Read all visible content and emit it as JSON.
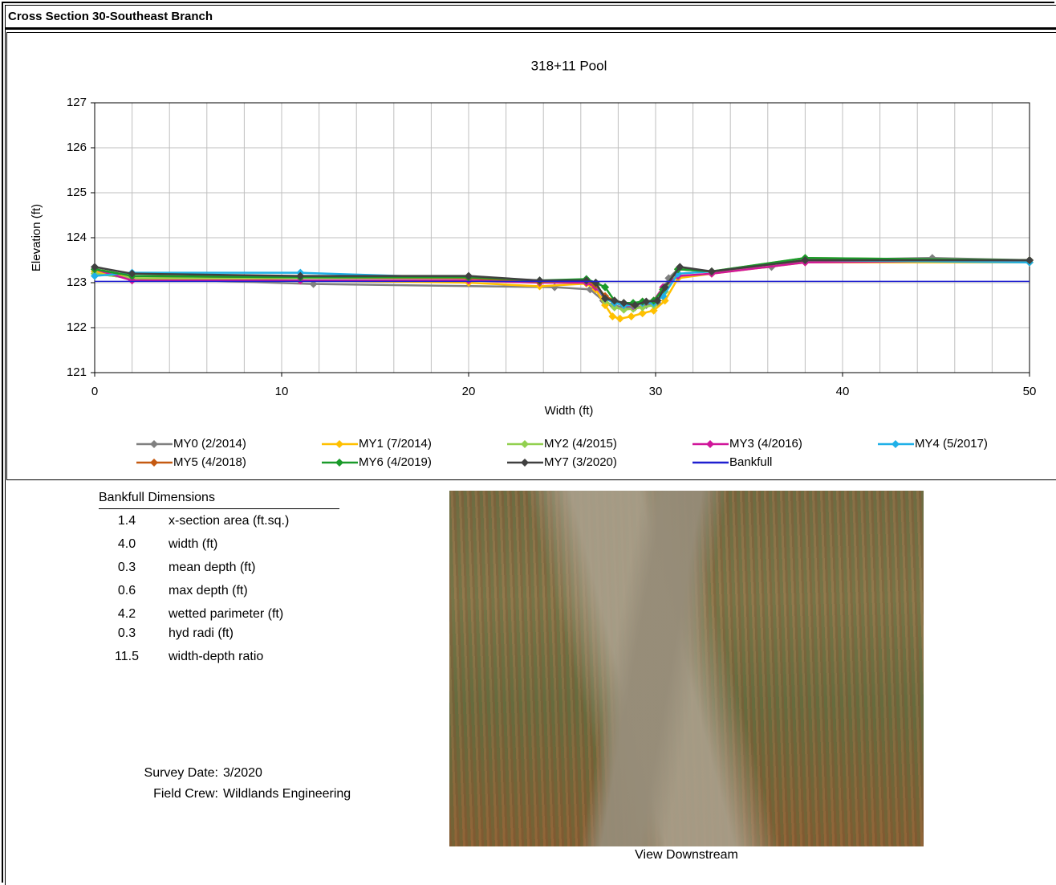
{
  "header": {
    "title": "Cross Section  30-Southeast Branch"
  },
  "chart_data": {
    "type": "line",
    "title": "318+11 Pool",
    "x_label": "Width (ft)",
    "y_label": "Elevation (ft)",
    "xlim": [
      0,
      50
    ],
    "ylim": [
      121,
      127
    ],
    "xticks": [
      0,
      10,
      20,
      30,
      40,
      50
    ],
    "yticks": [
      121,
      122,
      123,
      124,
      125,
      126,
      127
    ],
    "xgridlines": [
      0,
      2,
      4,
      6,
      8,
      10,
      12,
      14,
      16,
      18,
      20,
      22,
      24,
      26,
      28,
      30,
      32,
      34,
      36,
      38,
      40,
      42,
      44,
      46,
      48,
      50
    ],
    "grid": true,
    "legend": "bottom",
    "series": [
      {
        "name": "MY0 (2/2014)",
        "color": "#808080",
        "markers": true,
        "x": [
          0,
          2,
          11.7,
          24.6,
          26.5,
          27.2,
          27.7,
          28.3,
          28.9,
          29.5,
          30.1,
          30.7,
          31.2,
          33,
          36.2,
          38,
          44.8,
          50
        ],
        "values": [
          123.2,
          123.1,
          122.97,
          122.9,
          122.85,
          122.6,
          122.5,
          122.45,
          122.45,
          122.5,
          122.55,
          123.1,
          123.3,
          123.25,
          123.35,
          123.5,
          123.55,
          123.5
        ]
      },
      {
        "name": "MY1 (7/2014)",
        "color": "#ffc000",
        "markers": true,
        "x": [
          0,
          2,
          11,
          20,
          23.8,
          26.3,
          26.8,
          27.3,
          27.7,
          28.1,
          28.7,
          29.3,
          29.9,
          30.5,
          31.2,
          33,
          38,
          50
        ],
        "values": [
          123.25,
          123.1,
          123.05,
          123.0,
          122.92,
          122.98,
          122.85,
          122.5,
          122.25,
          122.2,
          122.25,
          122.32,
          122.38,
          122.6,
          123.1,
          123.2,
          123.45,
          123.45
        ]
      },
      {
        "name": "MY2 (4/2015)",
        "color": "#92d050",
        "markers": true,
        "x": [
          0,
          2,
          11,
          20,
          23.8,
          26.3,
          26.8,
          27.3,
          27.8,
          28.3,
          28.8,
          29.3,
          29.9,
          30.5,
          31.2,
          33,
          38,
          50
        ],
        "values": [
          123.2,
          123.1,
          123.1,
          123.1,
          123.0,
          123.05,
          122.95,
          122.6,
          122.45,
          122.4,
          122.42,
          122.45,
          122.5,
          122.8,
          123.3,
          123.25,
          123.55,
          123.5
        ]
      },
      {
        "name": "MY3 (4/2016)",
        "color": "#d0169a",
        "markers": true,
        "x": [
          0,
          2,
          11,
          20,
          23.8,
          26.3,
          26.8,
          27.3,
          27.8,
          28.3,
          28.8,
          29.3,
          29.9,
          30.4,
          31.2,
          33,
          38,
          50
        ],
        "values": [
          123.3,
          123.05,
          123.05,
          123.05,
          123.0,
          123.0,
          122.9,
          122.65,
          122.55,
          122.5,
          122.48,
          122.55,
          122.6,
          122.9,
          123.15,
          123.2,
          123.45,
          123.5
        ]
      },
      {
        "name": "MY4 (5/2017)",
        "color": "#1fb0e8",
        "markers": true,
        "x": [
          0,
          2,
          11,
          20,
          23.8,
          26.3,
          26.8,
          27.3,
          27.8,
          28.3,
          28.8,
          29.3,
          29.9,
          30.4,
          31.2,
          33,
          38,
          50
        ],
        "values": [
          123.15,
          123.22,
          123.22,
          123.1,
          123.02,
          123.05,
          122.95,
          122.65,
          122.55,
          122.5,
          122.5,
          122.55,
          122.55,
          122.7,
          123.2,
          123.25,
          123.5,
          123.45
        ]
      },
      {
        "name": "MY5 (4/2018)",
        "color": "#c55a11",
        "markers": true,
        "x": [
          0,
          2,
          11,
          20,
          23.8,
          26.3,
          26.8,
          27.3,
          27.8,
          28.3,
          28.8,
          29.3,
          29.9,
          30.4,
          31.2,
          33,
          38,
          50
        ],
        "values": [
          123.3,
          123.15,
          123.12,
          123.1,
          123.02,
          123.05,
          122.95,
          122.7,
          122.6,
          122.55,
          122.52,
          122.58,
          122.6,
          122.85,
          123.3,
          123.25,
          123.5,
          123.5
        ]
      },
      {
        "name": "MY6 (4/2019)",
        "color": "#1a9a2a",
        "markers": true,
        "x": [
          0,
          2,
          11,
          20,
          23.8,
          26.3,
          26.8,
          27.3,
          27.8,
          28.3,
          28.8,
          29.3,
          29.9,
          30.4,
          31.2,
          33,
          38,
          50
        ],
        "values": [
          123.3,
          123.15,
          123.12,
          123.12,
          123.05,
          123.08,
          123.0,
          122.9,
          122.6,
          122.55,
          122.55,
          122.58,
          122.6,
          122.85,
          123.3,
          123.25,
          123.55,
          123.5
        ]
      },
      {
        "name": "MY7 (3/2020)",
        "color": "#404040",
        "markers": true,
        "x": [
          0,
          2,
          11,
          20,
          23.8,
          26.3,
          26.8,
          27.3,
          27.8,
          28.3,
          28.9,
          29.5,
          30.1,
          30.5,
          31.3,
          33,
          38,
          50
        ],
        "values": [
          123.35,
          123.2,
          123.15,
          123.15,
          123.05,
          123.05,
          123.0,
          122.65,
          122.6,
          122.55,
          122.5,
          122.58,
          122.6,
          122.9,
          123.35,
          123.25,
          123.5,
          123.5
        ]
      },
      {
        "name": "Bankfull",
        "color": "#1f1fd0",
        "markers": false,
        "x": [
          0,
          50
        ],
        "values": [
          123.03,
          123.03
        ]
      }
    ]
  },
  "bankfull": {
    "title": "Bankfull Dimensions",
    "rows": [
      {
        "value": "1.4",
        "label": "x-section area (ft.sq.)"
      },
      {
        "value": "4.0",
        "label": "width (ft)"
      },
      {
        "value": "0.3",
        "label": "mean depth (ft)"
      },
      {
        "value": "0.6",
        "label": "max depth (ft)"
      },
      {
        "value": "4.2",
        "label": "wetted parimeter (ft)"
      },
      {
        "value": "0.3",
        "label": "hyd radi (ft)"
      },
      {
        "value": "11.5",
        "label": "width-depth ratio"
      }
    ]
  },
  "survey": {
    "date_label": "Survey Date:",
    "date": "3/2020",
    "crew_label": "Field Crew:",
    "crew": "Wildlands Engineering"
  },
  "photo": {
    "caption": "View Downstream"
  }
}
